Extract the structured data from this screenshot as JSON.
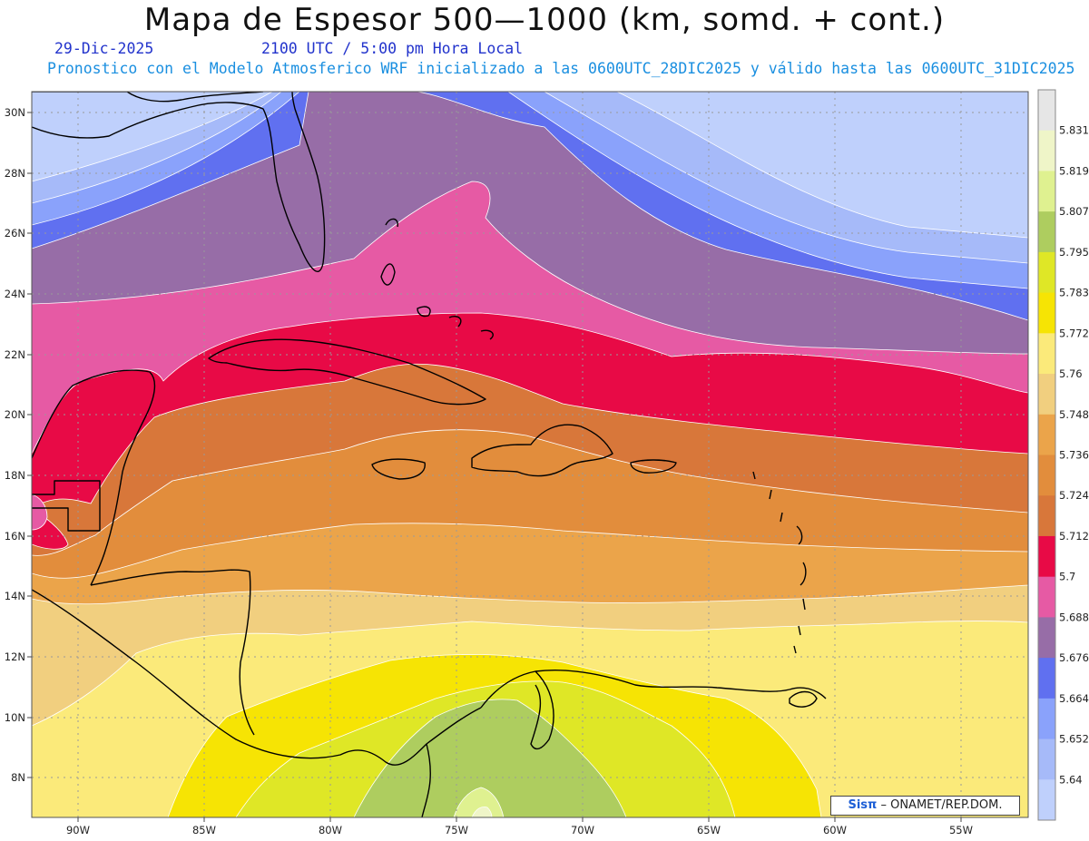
{
  "header": {
    "title": "Mapa de Espesor 500—1000 (km, somd. + cont.)",
    "date": "29-Dic-2025",
    "time": "2100 UTC / 5:00 pm Hora Local",
    "description": "Pronostico con el Modelo Atmosferico WRF inicializado a las 0600UTC_28DIC2025 y válido hasta las  0600UTC_31DIC2025"
  },
  "colors": {
    "title": "#111111",
    "date": "#2233cc",
    "time": "#2233cc",
    "description": "#1a8fe0",
    "land_outline": "#000000"
  },
  "map": {
    "lon_labels": [
      "90W",
      "85W",
      "80W",
      "75W",
      "70W",
      "65W",
      "60W",
      "55W"
    ],
    "lat_labels": [
      "30N",
      "28N",
      "26N",
      "24N",
      "22N",
      "20N",
      "18N",
      "16N",
      "14N",
      "12N",
      "10N",
      "8N"
    ],
    "grid": true,
    "lon_range": [
      -91.8,
      -52.5
    ],
    "lat_range": [
      6.7,
      30.6
    ]
  },
  "colorbar": {
    "labels": [
      "5.831",
      "5.819",
      "5.807",
      "5.795",
      "5.783",
      "5.772",
      "5.76",
      "5.748",
      "5.736",
      "5.724",
      "5.712",
      "5.7",
      "5.688",
      "5.676",
      "5.664",
      "5.652",
      "5.64"
    ],
    "colors_top_to_bottom": [
      "#e6e6e6",
      "#eff5c8",
      "#dff190",
      "#aecd5f",
      "#dfe726",
      "#f6e404",
      "#fbea7a",
      "#f1cf7f",
      "#eba44a",
      "#e28d3c",
      "#d8773a",
      "#e80a46",
      "#e65aa4",
      "#976da7",
      "#6070f0",
      "#8aa2fb",
      "#a6baf9",
      "#bfd0fc"
    ]
  },
  "attribution": {
    "logo": "Sisπ",
    "text": "– ONAMET/REP.DOM."
  }
}
